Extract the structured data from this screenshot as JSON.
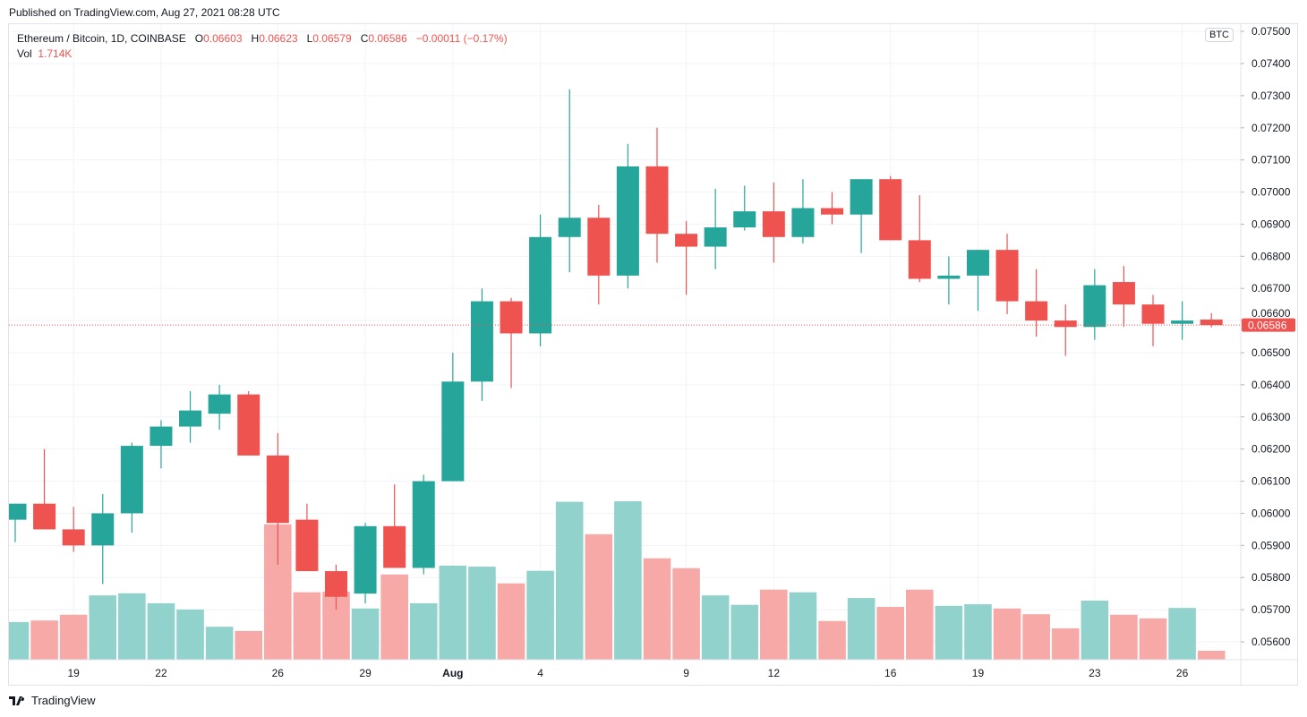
{
  "published": "Published on TradingView.com, Aug 27, 2021 08:28 UTC",
  "legend": {
    "symbol": "Ethereum / Bitcoin, 1D, COINBASE",
    "o_label": "O",
    "o": "0.06603",
    "h_label": "H",
    "h": "0.06623",
    "l_label": "L",
    "l": "0.06579",
    "c_label": "C",
    "c": "0.06586",
    "change": "−0.00011 (−0.17%)",
    "vol_label": "Vol",
    "vol": "1.714K"
  },
  "currency_badge": "BTC",
  "footer": {
    "brand": "TradingView"
  },
  "colors": {
    "up": "#26a69a",
    "down": "#ef5350",
    "vol_up": "#92d2cc",
    "vol_down": "#f7a9a7",
    "grid": "#f0f3fa"
  },
  "chart_data": {
    "type": "candlestick",
    "title": "Ethereum / Bitcoin, 1D, COINBASE",
    "ylim": [
      0.0555,
      0.0752
    ],
    "grid": true,
    "last_price_label": "0.06586",
    "y_ticks": [
      "0.07500",
      "0.07400",
      "0.07300",
      "0.07200",
      "0.07100",
      "0.07000",
      "0.06900",
      "0.06800",
      "0.06700",
      "0.06600",
      "0.06500",
      "0.06400",
      "0.06300",
      "0.06200",
      "0.06100",
      "0.06000",
      "0.05900",
      "0.05800",
      "0.05700",
      "0.05600"
    ],
    "x_ticks": [
      {
        "label": "19",
        "index": 2
      },
      {
        "label": "22",
        "index": 5
      },
      {
        "label": "26",
        "index": 9
      },
      {
        "label": "29",
        "index": 12
      },
      {
        "label": "Aug",
        "index": 15
      },
      {
        "label": "4",
        "index": 18
      },
      {
        "label": "9",
        "index": 23
      },
      {
        "label": "12",
        "index": 26
      },
      {
        "label": "16",
        "index": 30
      },
      {
        "label": "19",
        "index": 33
      },
      {
        "label": "23",
        "index": 37
      },
      {
        "label": "26",
        "index": 40
      }
    ],
    "dates": [
      "2021-07-17",
      "2021-07-18",
      "2021-07-19",
      "2021-07-20",
      "2021-07-21",
      "2021-07-22",
      "2021-07-23",
      "2021-07-24",
      "2021-07-25",
      "2021-07-26",
      "2021-07-27",
      "2021-07-28",
      "2021-07-29",
      "2021-07-30",
      "2021-07-31",
      "2021-08-01",
      "2021-08-02",
      "2021-08-03",
      "2021-08-04",
      "2021-08-05",
      "2021-08-06",
      "2021-08-07",
      "2021-08-08",
      "2021-08-09",
      "2021-08-10",
      "2021-08-11",
      "2021-08-12",
      "2021-08-13",
      "2021-08-14",
      "2021-08-15",
      "2021-08-16",
      "2021-08-17",
      "2021-08-18",
      "2021-08-19",
      "2021-08-20",
      "2021-08-21",
      "2021-08-22",
      "2021-08-23",
      "2021-08-24",
      "2021-08-25",
      "2021-08-26",
      "2021-08-27"
    ],
    "ohlc": [
      [
        0.0598,
        0.0603,
        0.0591,
        0.0603
      ],
      [
        0.0603,
        0.062,
        0.0595,
        0.0595
      ],
      [
        0.0595,
        0.0602,
        0.0588,
        0.059
      ],
      [
        0.059,
        0.0606,
        0.0578,
        0.06
      ],
      [
        0.06,
        0.0622,
        0.0594,
        0.0621
      ],
      [
        0.0621,
        0.0629,
        0.0614,
        0.0627
      ],
      [
        0.0627,
        0.0638,
        0.0622,
        0.0632
      ],
      [
        0.0631,
        0.064,
        0.0626,
        0.0637
      ],
      [
        0.0637,
        0.0638,
        0.0618,
        0.0618
      ],
      [
        0.0618,
        0.0625,
        0.0584,
        0.0597
      ],
      [
        0.0598,
        0.0603,
        0.0582,
        0.0582
      ],
      [
        0.0582,
        0.0584,
        0.057,
        0.0574
      ],
      [
        0.0575,
        0.0597,
        0.0572,
        0.0596
      ],
      [
        0.0596,
        0.0609,
        0.0583,
        0.0583
      ],
      [
        0.0583,
        0.0612,
        0.0581,
        0.061
      ],
      [
        0.061,
        0.065,
        0.061,
        0.0641
      ],
      [
        0.0641,
        0.067,
        0.0635,
        0.0666
      ],
      [
        0.0666,
        0.0667,
        0.0639,
        0.0656
      ],
      [
        0.0656,
        0.0693,
        0.0652,
        0.0686
      ],
      [
        0.0686,
        0.0732,
        0.0675,
        0.0692
      ],
      [
        0.0692,
        0.0696,
        0.0665,
        0.0674
      ],
      [
        0.0674,
        0.0715,
        0.067,
        0.0708
      ],
      [
        0.0708,
        0.072,
        0.0678,
        0.0687
      ],
      [
        0.0687,
        0.0691,
        0.0668,
        0.0683
      ],
      [
        0.0683,
        0.0701,
        0.0676,
        0.0689
      ],
      [
        0.0689,
        0.0702,
        0.0688,
        0.0694
      ],
      [
        0.0694,
        0.0703,
        0.0678,
        0.0686
      ],
      [
        0.0686,
        0.0704,
        0.0684,
        0.0695
      ],
      [
        0.0695,
        0.07,
        0.069,
        0.0693
      ],
      [
        0.0693,
        0.0704,
        0.0681,
        0.0704
      ],
      [
        0.0704,
        0.0705,
        0.0685,
        0.0685
      ],
      [
        0.0685,
        0.0699,
        0.0672,
        0.0673
      ],
      [
        0.0673,
        0.068,
        0.0665,
        0.0674
      ],
      [
        0.0674,
        0.0682,
        0.0663,
        0.0682
      ],
      [
        0.0682,
        0.0687,
        0.0662,
        0.0666
      ],
      [
        0.0666,
        0.0676,
        0.0655,
        0.066
      ],
      [
        0.066,
        0.0665,
        0.0649,
        0.0658
      ],
      [
        0.0658,
        0.0676,
        0.0654,
        0.0671
      ],
      [
        0.0672,
        0.0677,
        0.0658,
        0.0665
      ],
      [
        0.0665,
        0.0668,
        0.0652,
        0.0659
      ],
      [
        0.0659,
        0.0666,
        0.0654,
        0.066
      ],
      [
        0.06603,
        0.06623,
        0.06579,
        0.06586
      ]
    ],
    "volume_k": [
      7.2,
      7.5,
      8.6,
      12.3,
      12.7,
      10.8,
      9.6,
      6.3,
      5.5,
      25.9,
      12.9,
      13.0,
      9.8,
      16.3,
      10.8,
      18.0,
      17.8,
      14.6,
      17.0,
      30.2,
      24.0,
      30.3,
      19.4,
      17.5,
      12.3,
      10.5,
      13.4,
      12.9,
      7.4,
      11.8,
      10.1,
      13.4,
      10.3,
      10.6,
      9.8,
      8.7,
      6.0,
      11.3,
      8.6,
      7.9,
      9.9,
      1.714
    ]
  }
}
